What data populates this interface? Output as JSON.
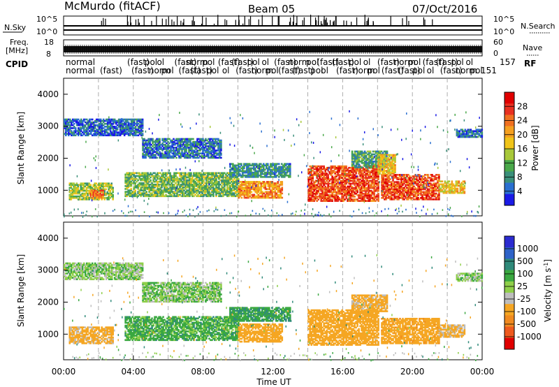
{
  "header": {
    "station": "McMurdo (fitACF)",
    "beam": "Beam 05",
    "date": "07/Oct/2016"
  },
  "strip_labels": {
    "nsky": "N.Sky",
    "nsky_tick_top": "10^5",
    "nsky_tick_bottom": "10^0",
    "nsearch": "N.Search",
    "nsearch_tick_top": "10^5",
    "nsearch_tick_bottom": "10^0",
    "freq_line1": "Freq.",
    "freq_line2": "[MHz]",
    "freq_tick_top": "18",
    "freq_tick_bottom": "8",
    "nave": "Nave",
    "nave_tick_top": "60",
    "nave_tick_bottom": "0",
    "cpid": "CPID",
    "rf": "RF",
    "cpid_line1": "normal",
    "cpid_line2": "normal",
    "cpid_line3": "(fast)",
    "cpid_code1": "157",
    "cpid_code2": "151"
  },
  "chart_data": [
    {
      "type": "heatmap",
      "title": "",
      "xlabel": "",
      "ylabel": "Slant Range [km]",
      "x_ticks": [
        "00:00",
        "04:00",
        "08:00",
        "12:00",
        "16:00",
        "20:00",
        "00:00"
      ],
      "y_ticks": [
        1000,
        2000,
        3000,
        4000
      ],
      "ylim": [
        200,
        4500
      ],
      "grid": "dashed vertical lines every 2 hours",
      "colorbar": {
        "label": "Power [dB]",
        "ticks": [
          4,
          8,
          12,
          16,
          20,
          24,
          28
        ],
        "colors": [
          "#1a1ae6",
          "#2a6fd0",
          "#3a8f7a",
          "#4aa84a",
          "#a8c83a",
          "#f0c419",
          "#f5a020",
          "#f07020",
          "#e83020",
          "#e00000"
        ]
      },
      "echo_regions": [
        {
          "t_start": 0.3,
          "t_end": 2.8,
          "range_low": 700,
          "range_high": 1200,
          "value": 14
        },
        {
          "t_start": 1.5,
          "t_end": 2.3,
          "range_low": 750,
          "range_high": 1000,
          "value": 24
        },
        {
          "t_start": 3.5,
          "t_end": 10.0,
          "range_low": 800,
          "range_high": 1550,
          "value": 12
        },
        {
          "t_start": 10.0,
          "t_end": 12.5,
          "range_low": 750,
          "range_high": 1250,
          "value": 22
        },
        {
          "t_start": 9.5,
          "t_end": 13.0,
          "range_low": 1400,
          "range_high": 1850,
          "value": 8
        },
        {
          "t_start": 4.5,
          "t_end": 9.0,
          "range_low": 2000,
          "range_high": 2600,
          "value": 6
        },
        {
          "t_start": 0.0,
          "t_end": 4.5,
          "range_low": 2700,
          "range_high": 3200,
          "value": 5
        },
        {
          "t_start": 14.0,
          "t_end": 18.0,
          "range_low": 650,
          "range_high": 1750,
          "value": 26
        },
        {
          "t_start": 16.5,
          "t_end": 18.5,
          "range_low": 1700,
          "range_high": 2200,
          "value": 10
        },
        {
          "t_start": 18.2,
          "t_end": 21.5,
          "range_low": 700,
          "range_high": 1500,
          "value": 26
        },
        {
          "t_start": 18.0,
          "t_end": 19.0,
          "range_low": 1500,
          "range_high": 2100,
          "value": 18
        },
        {
          "t_start": 21.5,
          "t_end": 23.0,
          "range_low": 900,
          "range_high": 1300,
          "value": 18
        },
        {
          "t_start": 22.5,
          "t_end": 24.0,
          "range_low": 2650,
          "range_high": 2900,
          "value": 6
        }
      ]
    },
    {
      "type": "heatmap",
      "title": "",
      "xlabel": "Time UT",
      "ylabel": "Slant Range [km]",
      "x_ticks": [
        "00:00",
        "04:00",
        "08:00",
        "12:00",
        "16:00",
        "20:00",
        "00:00"
      ],
      "y_ticks": [
        1000,
        2000,
        3000,
        4000
      ],
      "ylim": [
        200,
        4500
      ],
      "grid": "dashed vertical lines every 2 hours",
      "colorbar": {
        "label": "Velocity [m s^-1]",
        "ticks": [
          1000,
          500,
          100,
          25,
          -25,
          -100,
          -500,
          -1000
        ],
        "colors": [
          "#2b2bd0",
          "#2e63c8",
          "#2f8a7a",
          "#3aa840",
          "#8fcf4a",
          "#bdbdbd",
          "#f5a623",
          "#f08a20",
          "#ee5a1e",
          "#e00000"
        ]
      },
      "echo_regions": [
        {
          "t_start": 0.3,
          "t_end": 2.8,
          "range_low": 700,
          "range_high": 1200,
          "value": -150
        },
        {
          "t_start": 3.5,
          "t_end": 10.0,
          "range_low": 800,
          "range_high": 1550,
          "value": 60
        },
        {
          "t_start": 10.0,
          "t_end": 12.5,
          "range_low": 750,
          "range_high": 1300,
          "value": -200
        },
        {
          "t_start": 9.5,
          "t_end": 13.0,
          "range_low": 1400,
          "range_high": 1850,
          "value": 80
        },
        {
          "t_start": 4.5,
          "t_end": 9.0,
          "range_low": 2000,
          "range_high": 2600,
          "value": 10
        },
        {
          "t_start": 0.0,
          "t_end": 4.5,
          "range_low": 2700,
          "range_high": 3200,
          "value": 0
        },
        {
          "t_start": 14.0,
          "t_end": 18.0,
          "range_low": 650,
          "range_high": 1750,
          "value": -250
        },
        {
          "t_start": 16.5,
          "t_end": 18.5,
          "range_low": 1700,
          "range_high": 2200,
          "value": -150
        },
        {
          "t_start": 18.2,
          "t_end": 21.5,
          "range_low": 700,
          "range_high": 1500,
          "value": -350
        },
        {
          "t_start": 21.5,
          "t_end": 23.0,
          "range_low": 900,
          "range_high": 1300,
          "value": -120
        },
        {
          "t_start": 22.5,
          "t_end": 24.0,
          "range_low": 2650,
          "range_high": 2900,
          "value": 0
        }
      ]
    }
  ]
}
